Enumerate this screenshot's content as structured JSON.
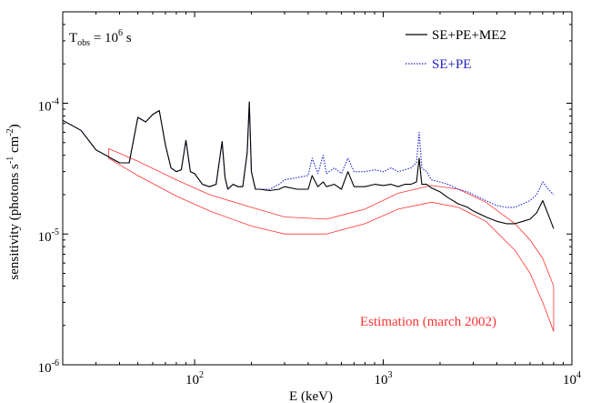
{
  "chart_data": {
    "type": "line",
    "title": "",
    "xlabel": "E (keV)",
    "ylabel": "sensitivity (photons s-1 cm-2)",
    "ylabel_parts": {
      "base": "sensitivity (photons s",
      "exp1": "-1",
      "mid": " cm",
      "exp2": "-2",
      "end": ")"
    },
    "xscale": "log",
    "yscale": "log",
    "xlim": [
      20,
      10000
    ],
    "ylim": [
      1e-06,
      0.0005
    ],
    "grid": false,
    "legend_placement": "top-right",
    "x_major_ticks": [
      100,
      1000,
      10000
    ],
    "x_tick_labels": [
      {
        "base": "10",
        "exp": "2"
      },
      {
        "base": "10",
        "exp": "3"
      },
      {
        "base": "10",
        "exp": "4"
      }
    ],
    "y_major_ticks": [
      1e-06,
      1e-05,
      0.0001
    ],
    "y_tick_labels": [
      {
        "base": "10",
        "exp": "-6"
      },
      {
        "base": "10",
        "exp": "-5"
      },
      {
        "base": "10",
        "exp": "-4"
      }
    ],
    "annotation_tobs": {
      "pre": "T",
      "sub": "obs",
      "mid": " = 10",
      "sup": "6",
      "post": " s"
    },
    "annotation_estimation": "Estimation (march 2002)",
    "series": [
      {
        "name": "SE+PE+ME2",
        "color": "#000000",
        "style": "solid",
        "x": [
          20,
          25,
          30,
          40,
          45,
          50,
          55,
          60,
          65,
          70,
          75,
          80,
          85,
          90,
          95,
          100,
          110,
          120,
          130,
          140,
          145,
          150,
          160,
          170,
          180,
          190,
          195,
          200,
          210,
          220,
          250,
          280,
          300,
          350,
          400,
          420,
          450,
          480,
          500,
          550,
          600,
          650,
          700,
          800,
          900,
          1000,
          1100,
          1200,
          1300,
          1400,
          1500,
          1550,
          1600,
          1700,
          1800,
          2000,
          2200,
          2500,
          2800,
          3000,
          3500,
          4000,
          4500,
          5000,
          5500,
          6000,
          6500,
          7000,
          7500,
          8000
        ],
        "y": [
          7.4e-05,
          6.2e-05,
          4.4e-05,
          3.5e-05,
          3.5e-05,
          7.8e-05,
          7.2e-05,
          8.2e-05,
          8.8e-05,
          4.8e-05,
          3.2e-05,
          3e-05,
          3.1e-05,
          5.2e-05,
          3e-05,
          2.9e-05,
          2.4e-05,
          2.3e-05,
          2.4e-05,
          5.1e-05,
          2.7e-05,
          2.2e-05,
          2.4e-05,
          2.3e-05,
          2.3e-05,
          4.2e-05,
          0.000102,
          3e-05,
          2.2e-05,
          2.2e-05,
          2.15e-05,
          2.2e-05,
          2.3e-05,
          2.2e-05,
          2.2e-05,
          2.8e-05,
          2.3e-05,
          2.5e-05,
          2.3e-05,
          2.4e-05,
          2.2e-05,
          3e-05,
          2.3e-05,
          2.3e-05,
          2.4e-05,
          2.35e-05,
          2.4e-05,
          2.3e-05,
          2.4e-05,
          2.4e-05,
          2.5e-05,
          3.8e-05,
          2.4e-05,
          2.4e-05,
          2.25e-05,
          2.1e-05,
          1.9e-05,
          1.7e-05,
          1.6e-05,
          1.5e-05,
          1.35e-05,
          1.25e-05,
          1.2e-05,
          1.2e-05,
          1.25e-05,
          1.3e-05,
          1.45e-05,
          1.8e-05,
          1.4e-05,
          1.1e-05
        ]
      },
      {
        "name": "SE+PE",
        "color": "#2222cc",
        "style": "dotted",
        "x": [
          20,
          25,
          30,
          40,
          45,
          50,
          55,
          60,
          65,
          70,
          75,
          80,
          85,
          90,
          95,
          100,
          110,
          120,
          130,
          140,
          145,
          150,
          160,
          170,
          180,
          190,
          195,
          200,
          210,
          220,
          250,
          280,
          300,
          350,
          400,
          420,
          450,
          480,
          500,
          550,
          600,
          650,
          700,
          800,
          900,
          1000,
          1100,
          1200,
          1300,
          1400,
          1500,
          1550,
          1600,
          1700,
          1800,
          2000,
          2200,
          2500,
          2800,
          3000,
          3500,
          4000,
          4500,
          5000,
          5500,
          6000,
          6500,
          7000,
          7500,
          8000
        ],
        "y": [
          7.4e-05,
          6.2e-05,
          4.4e-05,
          3.5e-05,
          3.5e-05,
          7.8e-05,
          7.2e-05,
          8.2e-05,
          8.8e-05,
          4.8e-05,
          3.2e-05,
          3e-05,
          3.1e-05,
          5.2e-05,
          3e-05,
          2.9e-05,
          2.4e-05,
          2.3e-05,
          2.4e-05,
          5.1e-05,
          2.7e-05,
          2.2e-05,
          2.4e-05,
          2.3e-05,
          2.3e-05,
          4.2e-05,
          0.000102,
          3e-05,
          2.2e-05,
          2.2e-05,
          2.2e-05,
          2.4e-05,
          2.6e-05,
          2.7e-05,
          2.8e-05,
          3.8e-05,
          2.9e-05,
          4e-05,
          2.9e-05,
          3.2e-05,
          2.9e-05,
          3.8e-05,
          3e-05,
          3e-05,
          3.1e-05,
          3e-05,
          3.2e-05,
          3e-05,
          3.1e-05,
          3.2e-05,
          3.5e-05,
          6e-05,
          3.2e-05,
          3e-05,
          2.6e-05,
          2.5e-05,
          2.4e-05,
          2.2e-05,
          2.1e-05,
          2e-05,
          1.8e-05,
          1.65e-05,
          1.6e-05,
          1.6e-05,
          1.7e-05,
          1.8e-05,
          2e-05,
          2.5e-05,
          2.2e-05,
          2e-05
        ]
      }
    ],
    "estimation_band": {
      "name": "Estimation (march 2002)",
      "color": "#ff3333",
      "upper": {
        "x": [
          35,
          50,
          80,
          120,
          200,
          300,
          500,
          800,
          1200,
          1800,
          2500,
          3500,
          5000,
          6000,
          7000,
          8000
        ],
        "y": [
          4.5e-05,
          3.6e-05,
          2.6e-05,
          2e-05,
          1.6e-05,
          1.35e-05,
          1.3e-05,
          1.55e-05,
          2.05e-05,
          2.35e-05,
          2.2e-05,
          1.75e-05,
          1.2e-05,
          9e-06,
          6.5e-06,
          4e-06
        ]
      },
      "lower": {
        "x": [
          35,
          50,
          80,
          120,
          200,
          300,
          500,
          800,
          1200,
          1800,
          2500,
          3500,
          5000,
          6000,
          7000,
          8000
        ],
        "y": [
          3.8e-05,
          2.8e-05,
          1.95e-05,
          1.5e-05,
          1.15e-05,
          1e-05,
          1e-05,
          1.2e-05,
          1.55e-05,
          1.75e-05,
          1.6e-05,
          1.25e-05,
          7.5e-06,
          5e-06,
          3e-06,
          1.8e-06
        ]
      }
    }
  }
}
